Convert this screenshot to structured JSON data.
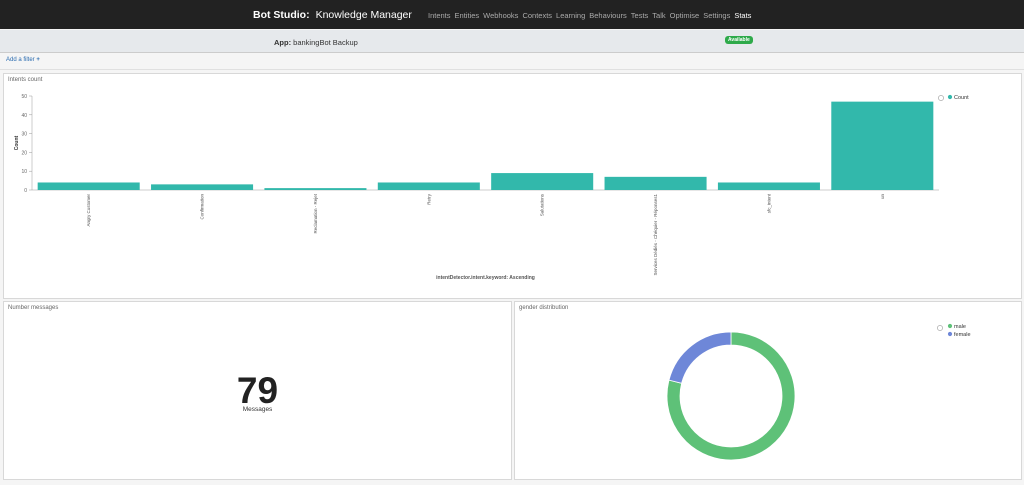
{
  "header": {
    "brand": "Bot Studio:",
    "subtitle": "Knowledge Manager",
    "nav": [
      "Intents",
      "Entities",
      "Webhooks",
      "Contexts",
      "Learning",
      "Behaviours",
      "Tests",
      "Talk",
      "Optimise",
      "Settings",
      "Stats"
    ],
    "active_nav": "Stats"
  },
  "app_bar": {
    "label": "App:",
    "name": "bankingBot Backup",
    "status": "Available",
    "status_color": "#2eaa4a"
  },
  "filter_bar": {
    "add_filter": "Add a filter",
    "add_icon": "plus-icon"
  },
  "panels": {
    "intents": {
      "title": "Intents count"
    },
    "messages": {
      "title": "Number messages",
      "value": "79",
      "label": "Messages"
    },
    "gender": {
      "title": "gender distribution"
    }
  },
  "chart_data": [
    {
      "type": "bar",
      "categories": [
        "Angry Customer",
        "Confirmation",
        "Reclamation - Rejet",
        "Retry",
        "Salutations",
        "Services Dédiés - Chéquier - Réponses1",
        "sfc_intent",
        "un"
      ],
      "values": [
        4,
        3,
        1,
        4,
        9,
        7,
        4,
        47
      ],
      "series": [
        {
          "name": "Count",
          "values": [
            4,
            3,
            1,
            4,
            9,
            7,
            4,
            47
          ]
        }
      ],
      "xlabel": "intentDetector.intent.keyword: Ascending",
      "ylabel": "Count",
      "ylim": [
        0,
        50
      ],
      "yticks": [
        0,
        10,
        20,
        30,
        40,
        50
      ],
      "color": "#32b8ab",
      "legend": "top-right"
    },
    {
      "type": "pie",
      "labels": [
        "male",
        "female"
      ],
      "values": [
        79,
        21
      ],
      "colors": [
        "#5ec178",
        "#6e87d8"
      ],
      "donut": true,
      "legend": "top-right"
    }
  ]
}
